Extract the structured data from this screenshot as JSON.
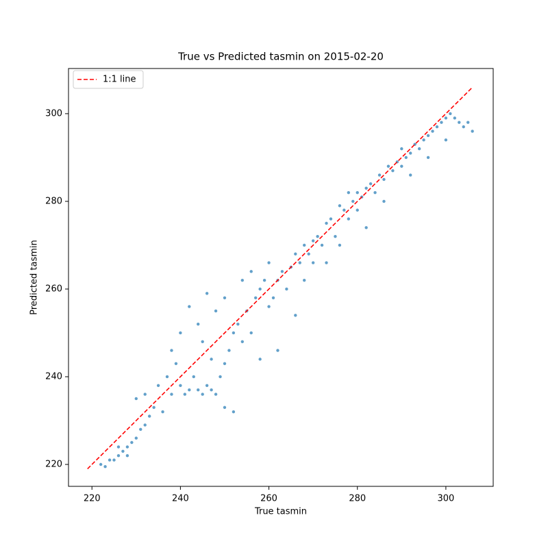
{
  "chart_data": {
    "type": "scatter",
    "title": "True vs Predicted tasmin on 2015-02-20",
    "x_label": "True tasmin",
    "y_label": "Predicted tasmin",
    "xlim": [
      214.7,
      310.7
    ],
    "ylim": [
      215,
      310.3
    ],
    "xticks": [
      220,
      240,
      260,
      280,
      300
    ],
    "yticks": [
      220,
      240,
      260,
      280,
      300
    ],
    "legend": "upper left",
    "points": {
      "color": "#1f77b4",
      "x": [
        222,
        223,
        224,
        225,
        226,
        227,
        228,
        229,
        230,
        231,
        232,
        233,
        226,
        228,
        230,
        232,
        234,
        235,
        236,
        237,
        238,
        238,
        239,
        240,
        240,
        241,
        242,
        242,
        243,
        244,
        244,
        245,
        245,
        246,
        246,
        247,
        247,
        248,
        248,
        249,
        250,
        250,
        250,
        251,
        252,
        252,
        253,
        254,
        254,
        255,
        256,
        256,
        257,
        258,
        258,
        259,
        260,
        260,
        261,
        262,
        262,
        263,
        264,
        265,
        266,
        266,
        267,
        268,
        268,
        269,
        270,
        270,
        271,
        272,
        273,
        273,
        274,
        275,
        276,
        276,
        277,
        278,
        278,
        279,
        280,
        280,
        281,
        282,
        282,
        283,
        284,
        285,
        286,
        286,
        287,
        288,
        289,
        290,
        290,
        291,
        292,
        292,
        293,
        294,
        295,
        296,
        296,
        297,
        298,
        299,
        300,
        300,
        301,
        302,
        303,
        304,
        305,
        306
      ],
      "y": [
        220,
        219.5,
        221,
        221,
        222,
        223,
        224,
        225,
        226,
        228,
        229,
        231,
        224,
        222,
        235,
        236,
        233,
        238,
        232,
        240,
        236,
        246,
        243,
        238,
        250,
        236,
        237,
        256,
        240,
        237,
        252,
        236,
        248,
        238,
        259,
        237,
        244,
        236,
        255,
        240,
        243,
        233,
        258,
        246,
        250,
        232,
        252,
        248,
        262,
        255,
        250,
        264,
        258,
        244,
        260,
        262,
        256,
        266,
        258,
        262,
        246,
        264,
        260,
        265,
        268,
        254,
        266,
        270,
        262,
        268,
        271,
        266,
        272,
        270,
        275,
        266,
        276,
        272,
        279,
        270,
        278,
        282,
        276,
        280,
        282,
        278,
        281,
        283,
        274,
        284,
        282,
        286,
        285,
        280,
        288,
        287,
        289,
        288,
        292,
        290,
        291,
        286,
        293,
        292,
        294,
        295,
        290,
        296,
        297,
        298,
        299,
        294,
        300,
        299,
        298,
        297,
        298,
        296
      ]
    },
    "line": {
      "name": "1:1 line",
      "color": "#ff0000",
      "style": "dashed",
      "x": [
        219,
        306
      ],
      "y": [
        219,
        306
      ]
    }
  }
}
